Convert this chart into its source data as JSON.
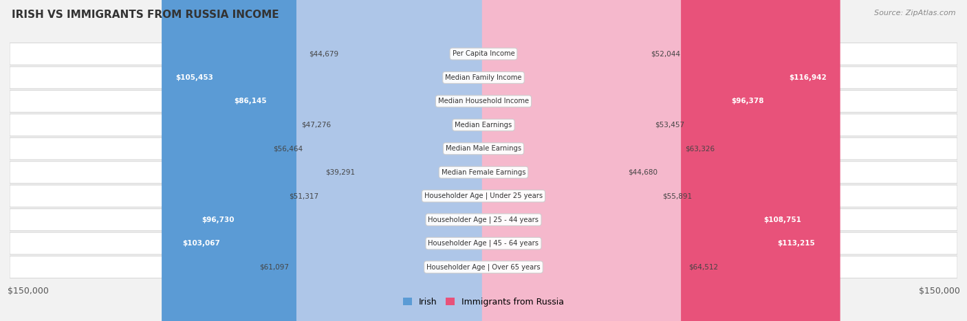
{
  "title": "IRISH VS IMMIGRANTS FROM RUSSIA INCOME",
  "source": "Source: ZipAtlas.com",
  "categories": [
    "Per Capita Income",
    "Median Family Income",
    "Median Household Income",
    "Median Earnings",
    "Median Male Earnings",
    "Median Female Earnings",
    "Householder Age | Under 25 years",
    "Householder Age | 25 - 44 years",
    "Householder Age | 45 - 64 years",
    "Householder Age | Over 65 years"
  ],
  "irish_values": [
    44679,
    105453,
    86145,
    47276,
    56464,
    39291,
    51317,
    96730,
    103067,
    61097
  ],
  "russia_values": [
    52044,
    116942,
    96378,
    53457,
    63326,
    44680,
    55891,
    108751,
    113215,
    64512
  ],
  "irish_color_light": "#aec6e8",
  "irish_color_dark": "#5b9bd5",
  "russia_color_light": "#f5b8cc",
  "russia_color_dark": "#e8527a",
  "max_value": 150000,
  "inside_label_threshold": 75000,
  "legend_irish": "Irish",
  "legend_russia": "Immigrants from Russia",
  "bg_color": "#f2f2f2",
  "row_bg_color": "#ffffff",
  "row_border_color": "#d8d8d8"
}
